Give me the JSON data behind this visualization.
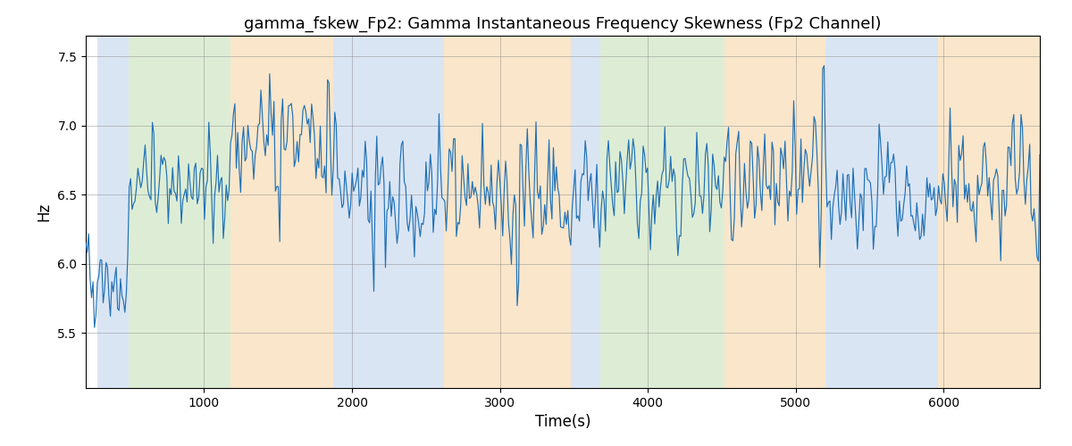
{
  "title": "gamma_fskew_Fp2: Gamma Instantaneous Frequency Skewness (Fp2 Channel)",
  "xlabel": "Time(s)",
  "ylabel": "Hz",
  "xlim": [
    200,
    6650
  ],
  "ylim": [
    5.1,
    7.65
  ],
  "yticks": [
    5.5,
    6.0,
    6.5,
    7.0,
    7.5
  ],
  "xticks": [
    1000,
    2000,
    3000,
    4000,
    5000,
    6000
  ],
  "line_color": "#2171b5",
  "bg_color": "#ffffff",
  "regions": [
    {
      "start": 280,
      "end": 490,
      "color": "#aec6e8",
      "alpha": 0.45
    },
    {
      "start": 490,
      "end": 1180,
      "color": "#b5d9a3",
      "alpha": 0.45
    },
    {
      "start": 1180,
      "end": 1870,
      "color": "#f5c98a",
      "alpha": 0.45
    },
    {
      "start": 1870,
      "end": 2620,
      "color": "#aec6e8",
      "alpha": 0.45
    },
    {
      "start": 2620,
      "end": 2740,
      "color": "#f5c98a",
      "alpha": 0.45
    },
    {
      "start": 2740,
      "end": 3480,
      "color": "#f5c98a",
      "alpha": 0.45
    },
    {
      "start": 3480,
      "end": 3680,
      "color": "#aec6e8",
      "alpha": 0.45
    },
    {
      "start": 3680,
      "end": 3780,
      "color": "#b5d9a3",
      "alpha": 0.45
    },
    {
      "start": 3780,
      "end": 4520,
      "color": "#b5d9a3",
      "alpha": 0.45
    },
    {
      "start": 4520,
      "end": 5200,
      "color": "#f5c98a",
      "alpha": 0.45
    },
    {
      "start": 5200,
      "end": 5960,
      "color": "#aec6e8",
      "alpha": 0.45
    },
    {
      "start": 5960,
      "end": 6700,
      "color": "#f5c98a",
      "alpha": 0.45
    }
  ],
  "seed": 2024,
  "n_points": 660,
  "time_start": 200,
  "time_end": 6650,
  "figsize": [
    12.0,
    5.0
  ],
  "dpi": 100
}
